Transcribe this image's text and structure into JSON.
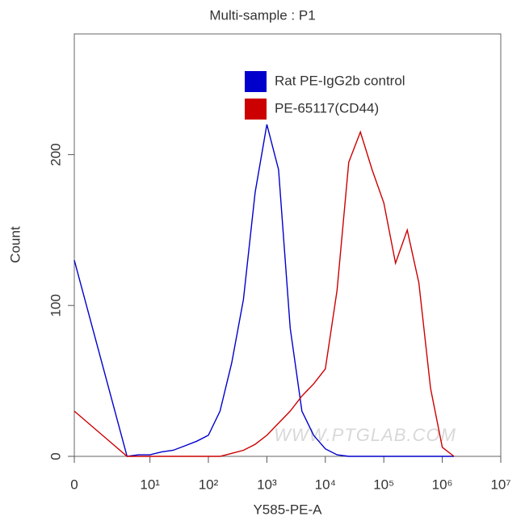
{
  "chart_data": {
    "type": "line",
    "title": "Multi-sample : P1",
    "x_label": "Y585-PE-A",
    "y_label": "Count",
    "watermark": "WWW.PTGLAB.COM",
    "xscale": "biexponential",
    "xlim": [
      0,
      10000000
    ],
    "xticks": [
      0,
      {
        "value": 10,
        "label": "10¹"
      },
      {
        "value": 100,
        "label": "10²"
      },
      {
        "value": 1000,
        "label": "10³"
      },
      {
        "value": 10000,
        "label": "10⁴"
      },
      {
        "value": 100000,
        "label": "10⁵"
      },
      {
        "value": 1000000,
        "label": "10⁶"
      },
      {
        "value": 10000000,
        "label": "10⁷"
      }
    ],
    "ylim": [
      0,
      280
    ],
    "yticks": [
      0,
      100,
      200
    ],
    "legend": "top-right",
    "x": [
      0,
      4,
      6.3,
      10,
      16,
      25,
      40,
      63,
      100,
      158,
      251,
      398,
      631,
      1000,
      1585,
      2512,
      3981,
      6310,
      10000,
      15849,
      25119,
      39811,
      63096,
      100000,
      158489,
      251189,
      398107,
      630957,
      1000000,
      1584893
    ],
    "series": [
      {
        "name": "Rat PE-IgG2b control",
        "color": "#0000cc",
        "values": [
          130,
          0,
          1,
          1,
          3,
          4,
          7,
          10,
          14,
          30,
          62,
          104,
          175,
          220,
          190,
          85,
          30,
          14,
          5,
          1,
          0,
          0,
          0,
          0,
          0,
          0,
          0,
          0,
          0,
          0
        ]
      },
      {
        "name": "PE-65117(CD44)",
        "color": "#cc0000",
        "values": [
          30,
          0,
          0,
          0,
          0,
          0,
          0,
          0,
          0,
          0,
          2,
          4,
          8,
          14,
          22,
          30,
          40,
          48,
          58,
          110,
          195,
          215,
          190,
          168,
          128,
          150,
          115,
          45,
          6,
          0
        ]
      }
    ]
  }
}
